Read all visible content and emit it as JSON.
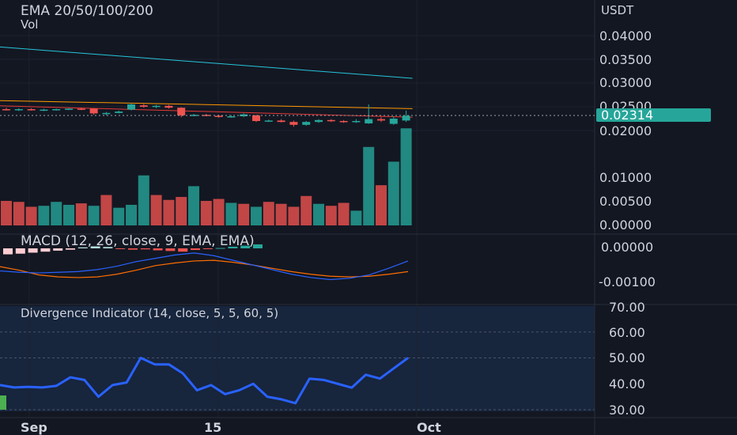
{
  "legend": {
    "ema": "EMA 20/50/100/200",
    "vol": "Vol",
    "macd": "MACD (12, 26, close, 9, EMA, EMA)",
    "divergence": "Divergence Indicator (14, close, 5, 5, 60, 5)"
  },
  "currency": "USDT",
  "colors": {
    "background": "#131722",
    "up": "#26a69a",
    "down": "#ef5350",
    "ema_teal": "#26c6da",
    "ema_orange": "#ff9800",
    "ema_red": "#e53935",
    "macd_line": "#2962ff",
    "signal_line": "#ff6d00",
    "divergence_line": "#2962ff",
    "divergence_band": "#1e3a5f",
    "price_tag": "#26a69a"
  },
  "chart_data": [
    {
      "type": "candlestick",
      "title": "EMA 20/50/100/200",
      "y_ticks": [
        "0.04000",
        "0.03500",
        "0.03000",
        "0.02500",
        "0.02000"
      ],
      "last_price": "0.02314",
      "x_ticks": [
        "Sep",
        "15",
        "Oct"
      ],
      "candles": [
        {
          "o": 0.0245,
          "h": 0.0248,
          "l": 0.0242,
          "c": 0.0244
        },
        {
          "o": 0.0244,
          "h": 0.0247,
          "l": 0.0241,
          "c": 0.0245
        },
        {
          "o": 0.0245,
          "h": 0.0247,
          "l": 0.0242,
          "c": 0.0243
        },
        {
          "o": 0.0243,
          "h": 0.0246,
          "l": 0.0241,
          "c": 0.0244
        },
        {
          "o": 0.0244,
          "h": 0.0246,
          "l": 0.0242,
          "c": 0.0245
        },
        {
          "o": 0.0245,
          "h": 0.0247,
          "l": 0.0243,
          "c": 0.0246
        },
        {
          "o": 0.0246,
          "h": 0.0248,
          "l": 0.0243,
          "c": 0.0245
        },
        {
          "o": 0.0246,
          "h": 0.0247,
          "l": 0.0233,
          "c": 0.0236
        },
        {
          "o": 0.0236,
          "h": 0.0239,
          "l": 0.0232,
          "c": 0.0237
        },
        {
          "o": 0.0237,
          "h": 0.0242,
          "l": 0.0236,
          "c": 0.024
        },
        {
          "o": 0.0244,
          "h": 0.0258,
          "l": 0.0242,
          "c": 0.0255
        },
        {
          "o": 0.0253,
          "h": 0.0256,
          "l": 0.0248,
          "c": 0.025
        },
        {
          "o": 0.025,
          "h": 0.0254,
          "l": 0.0247,
          "c": 0.0252
        },
        {
          "o": 0.0252,
          "h": 0.0254,
          "l": 0.0246,
          "c": 0.0248
        },
        {
          "o": 0.0248,
          "h": 0.0249,
          "l": 0.0228,
          "c": 0.0232
        },
        {
          "o": 0.0232,
          "h": 0.0235,
          "l": 0.023,
          "c": 0.0233
        },
        {
          "o": 0.0233,
          "h": 0.0235,
          "l": 0.023,
          "c": 0.0231
        },
        {
          "o": 0.0231,
          "h": 0.0233,
          "l": 0.0227,
          "c": 0.0229
        },
        {
          "o": 0.0229,
          "h": 0.0232,
          "l": 0.0227,
          "c": 0.023
        },
        {
          "o": 0.023,
          "h": 0.0236,
          "l": 0.0228,
          "c": 0.0234
        },
        {
          "o": 0.0232,
          "h": 0.0233,
          "l": 0.0218,
          "c": 0.022
        },
        {
          "o": 0.022,
          "h": 0.0223,
          "l": 0.0218,
          "c": 0.0221
        },
        {
          "o": 0.0221,
          "h": 0.0224,
          "l": 0.0217,
          "c": 0.0218
        },
        {
          "o": 0.0218,
          "h": 0.0221,
          "l": 0.0208,
          "c": 0.0212
        },
        {
          "o": 0.0212,
          "h": 0.022,
          "l": 0.021,
          "c": 0.0218
        },
        {
          "o": 0.0218,
          "h": 0.0224,
          "l": 0.0216,
          "c": 0.0222
        },
        {
          "o": 0.0222,
          "h": 0.0224,
          "l": 0.0218,
          "c": 0.022
        },
        {
          "o": 0.022,
          "h": 0.0222,
          "l": 0.0216,
          "c": 0.0218
        },
        {
          "o": 0.0218,
          "h": 0.0224,
          "l": 0.0216,
          "c": 0.022
        },
        {
          "o": 0.0215,
          "h": 0.0255,
          "l": 0.0214,
          "c": 0.0224
        },
        {
          "o": 0.0224,
          "h": 0.0228,
          "l": 0.0218,
          "c": 0.0221
        },
        {
          "o": 0.0214,
          "h": 0.023,
          "l": 0.0212,
          "c": 0.0225
        },
        {
          "o": 0.0221,
          "h": 0.0242,
          "l": 0.0218,
          "c": 0.0231
        }
      ],
      "volume": {
        "y_ticks": [
          "0.01000",
          "0.00500",
          "0.00000"
        ],
        "values": [
          0.005,
          0.0048,
          0.0038,
          0.004,
          0.0048,
          0.0042,
          0.0045,
          0.004,
          0.0062,
          0.0036,
          0.0042,
          0.0102,
          0.0062,
          0.0052,
          0.0058,
          0.008,
          0.005,
          0.0054,
          0.0046,
          0.0044,
          0.0038,
          0.0048,
          0.0044,
          0.0038,
          0.006,
          0.0044,
          0.004,
          0.0046,
          0.003,
          0.016,
          0.0082,
          0.013,
          0.0198
        ],
        "up": [
          false,
          false,
          false,
          true,
          true,
          true,
          false,
          true,
          false,
          true,
          true,
          true,
          false,
          false,
          false,
          true,
          false,
          false,
          true,
          false,
          true,
          false,
          false,
          false,
          false,
          true,
          false,
          false,
          true,
          true,
          false,
          true,
          true
        ]
      },
      "ema_series": [
        {
          "values": [
            0.0376,
            0.031
          ]
        },
        {
          "values": [
            0.0263,
            0.0246
          ]
        },
        {
          "values": [
            0.0252,
            0.0228
          ]
        }
      ]
    },
    {
      "type": "macd",
      "title": "MACD (12, 26, close, 9, EMA, EMA)",
      "y_ticks": [
        "0.00000",
        "-0.00100"
      ],
      "histogram": [
        -0.00018,
        -0.00016,
        -0.00013,
        -0.0001,
        -7e-05,
        -4e-05,
        3e-05,
        6e-05,
        4e-05,
        -2e-05,
        -4e-05,
        -3e-05,
        -6e-05,
        -8e-05,
        -0.0001,
        -5e-05,
        -2e-05,
        1e-05,
        5e-05,
        8e-05,
        0.00012
      ],
      "macd_line": [
        -0.00068,
        -0.00072,
        -0.00074,
        -0.00072,
        -0.0007,
        -0.00064,
        -0.00054,
        -0.0004,
        -0.0003,
        -0.0002,
        -0.00014,
        -0.00022,
        -0.00036,
        -0.0005,
        -0.00064,
        -0.00078,
        -0.00088,
        -0.00094,
        -0.0009,
        -0.0008,
        -0.0006,
        -0.00038
      ],
      "signal_line": [
        -0.00055,
        -0.00066,
        -0.0008,
        -0.00086,
        -0.00088,
        -0.00086,
        -0.00078,
        -0.00066,
        -0.00052,
        -0.00044,
        -0.00038,
        -0.00036,
        -0.00042,
        -0.0005,
        -0.0006,
        -0.0007,
        -0.00078,
        -0.00084,
        -0.00086,
        -0.00084,
        -0.00078,
        -0.0007
      ]
    },
    {
      "type": "line",
      "title": "Divergence Indicator (14, close, 5, 5, 60, 5)",
      "y_ticks": [
        "70.00",
        "60.00",
        "50.00",
        "40.00",
        "30.00"
      ],
      "ylim": [
        30,
        70
      ],
      "values": [
        39.5,
        38.6,
        38.8,
        38.6,
        39.2,
        42.5,
        41.5,
        35,
        39.5,
        40.5,
        50,
        47.5,
        47.5,
        44,
        37.5,
        39.5,
        36,
        37.5,
        40,
        35,
        34,
        32.5,
        42,
        41.5,
        40,
        38.5,
        43.5,
        42,
        46,
        50
      ]
    }
  ]
}
